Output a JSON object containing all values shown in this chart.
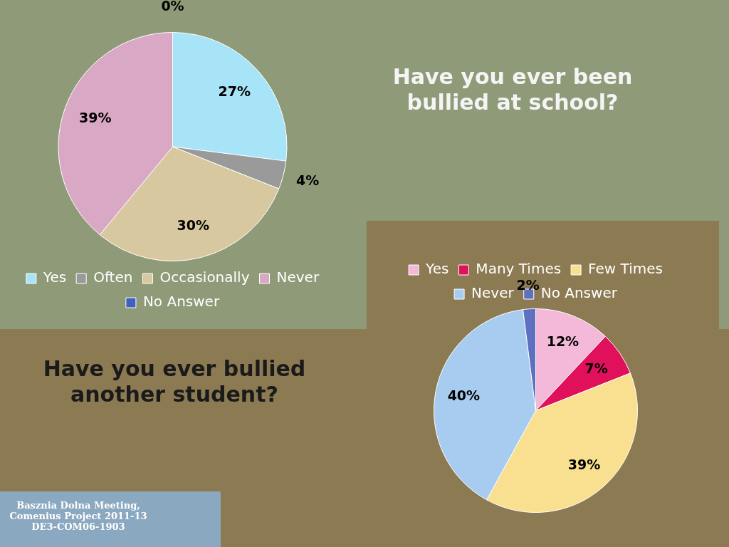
{
  "chart_data": [
    {
      "type": "pie",
      "title": "Have you ever been bullied at school?",
      "categories": [
        "Yes",
        "Often",
        "Occasionally",
        "Never",
        "No Answer"
      ],
      "values": [
        27,
        4,
        30,
        39,
        0
      ],
      "value_labels": [
        "27%",
        "4%",
        "30%",
        "39%",
        "0%"
      ],
      "colors": [
        "#a8e4f8",
        "#9a9a9a",
        "#d8c8a0",
        "#d8a8c4",
        "#4060c0"
      ],
      "legend": "bottom"
    },
    {
      "type": "pie",
      "title": "Have you ever bullied another student?",
      "categories": [
        "Yes",
        "Many Times",
        "Few Times",
        "Never",
        "No Answer"
      ],
      "values": [
        12,
        7,
        39,
        40,
        2
      ],
      "value_labels": [
        "12%",
        "7%",
        "39%",
        "40%",
        "2%"
      ],
      "colors": [
        "#f4b8d8",
        "#e0105a",
        "#f8e090",
        "#a8ccf0",
        "#6070c0"
      ],
      "legend": "top",
      "annotations": [
        "Basznia Dolna Meeting, Comenius Project 2011-13 DE3-COM06-1903"
      ]
    }
  ]
}
